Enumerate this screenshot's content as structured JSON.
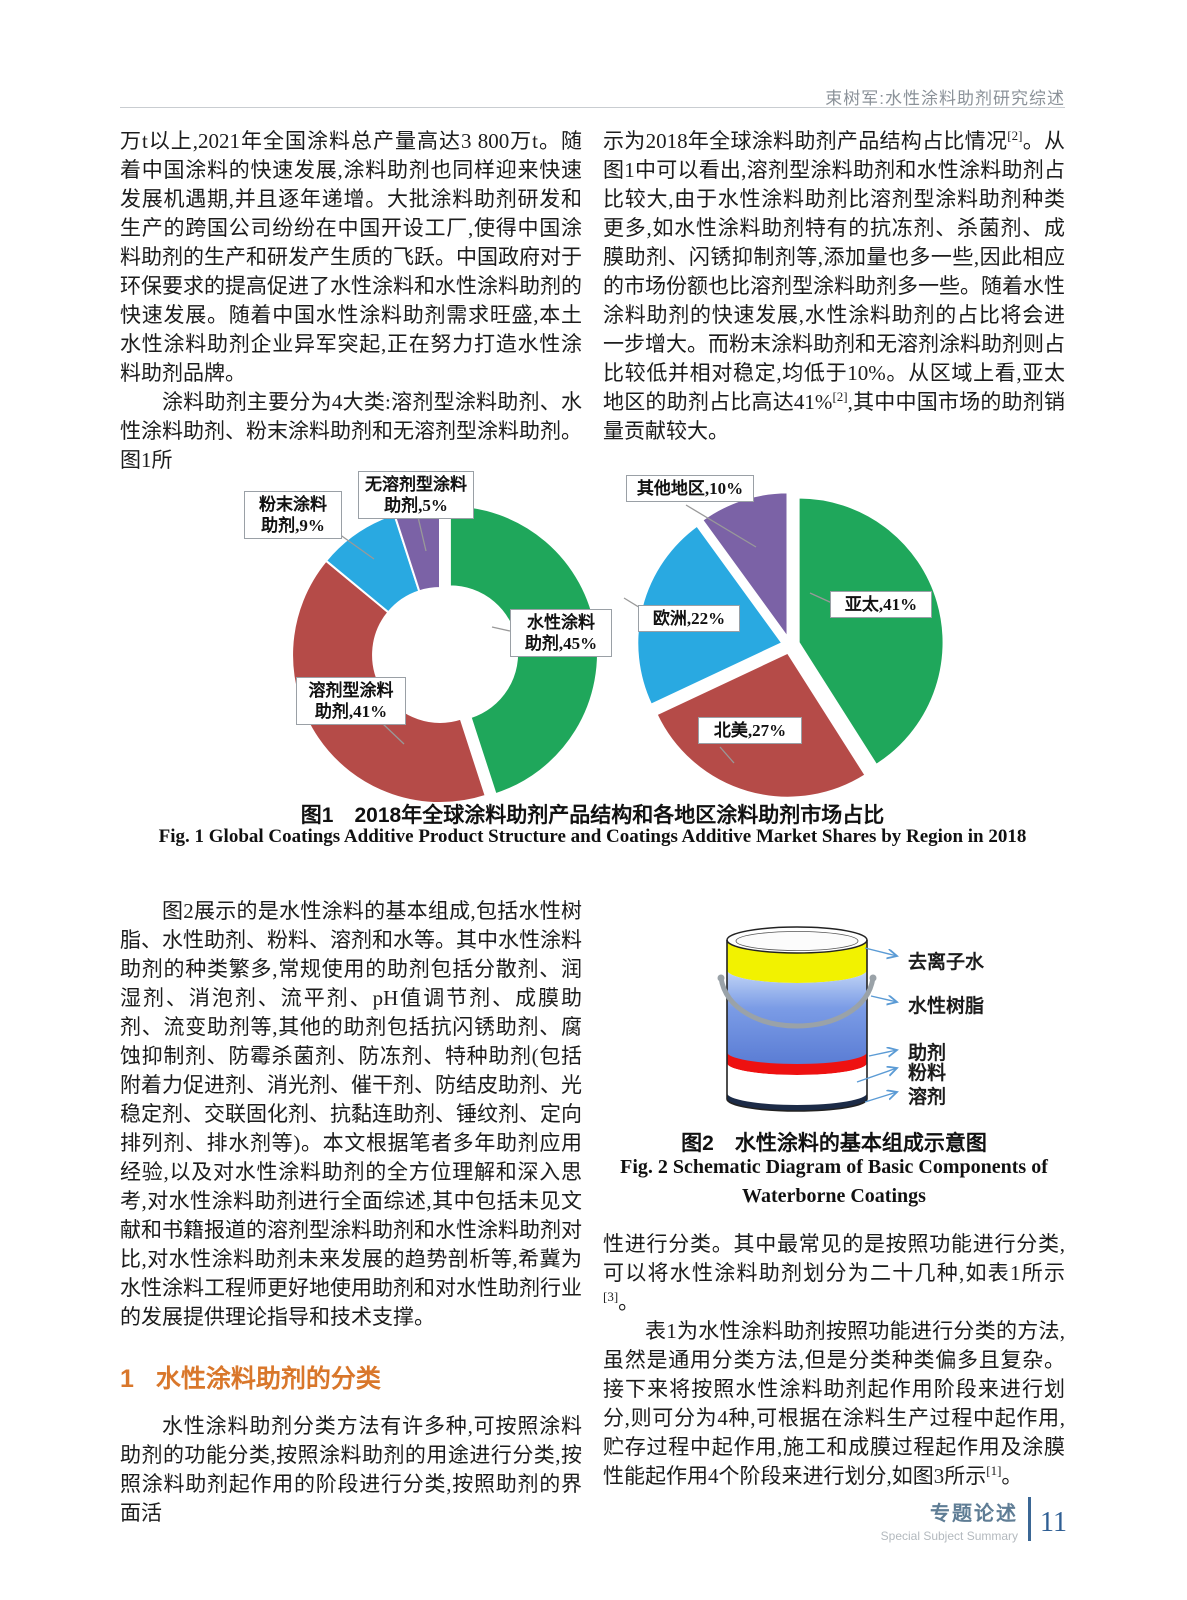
{
  "header": {
    "running_title": "束树军:水性涂料助剂研究综述"
  },
  "body": {
    "left_p1": [
      {
        "t": "万t以上,2021年全国涂料总产量高达3 800万t。随着中国涂料的快速发展,涂料助剂也同样迎来快速发展机遇期,并且逐年递增。大批涂料助剂研发和生产的跨国公司纷纷在中国开设工厂,使得中国涂料助剂的生产和研发产生质的飞跃。中国政府对于环保要求的提高促进了水性涂料和水性涂料助剂的快速发展。随着中国水性涂料助剂需求旺盛,本土水性涂料助剂企业异军突起,正在努力打造水性涂料助剂品牌。"
      }
    ],
    "left_p2": [
      {
        "t": "涂料助剂主要分为4大类:溶剂型涂料助剂、水性涂料助剂、粉末涂料助剂和无溶剂型涂料助剂。图1所"
      }
    ],
    "right_p1": [
      {
        "t": "示为2018年全球涂料助剂产品结构占比情况"
      },
      {
        "sup": "[2]"
      },
      {
        "t": "。从图1中可以看出,溶剂型涂料助剂和水性涂料助剂占比较大,由于水性涂料助剂比溶剂型涂料助剂种类更多,如水性涂料助剂特有的抗冻剂、杀菌剂、成膜助剂、闪锈抑制剂等,添加量也多一些,因此相应的市场份额也比溶剂型涂料助剂多一些。随着水性涂料助剂的快速发展,水性涂料助剂的占比将会进一步增大。而粉末涂料助剂和无溶剂涂料助剂则占比较低并相对稳定,均低于10%。从区域上看,亚太地区的助剂占比高达41%"
      },
      {
        "sup": "[2]"
      },
      {
        "t": ",其中中国市场的助剂销量贡献较大。"
      }
    ],
    "left_p3": [
      {
        "t": "图2展示的是水性涂料的基本组成,包括水性树脂、水性助剂、粉料、溶剂和水等。其中水性涂料助剂的种类繁多,常规使用的助剂包括分散剂、润湿剂、消泡剂、流平剂、pH值调节剂、成膜助剂、流变助剂等,其他的助剂包括抗闪锈助剂、腐蚀抑制剂、防霉杀菌剂、防冻剂、特种助剂(包括附着力促进剂、消光剂、催干剂、防结皮助剂、光稳定剂、交联固化剂、抗黏连助剂、锤纹剂、定向排列剂、排水剂等)。本文根据笔者多年助剂应用经验,以及对水性涂料助剂的全方位理解和深入思考,对水性涂料助剂进行全面综述,其中包括未见文献和书籍报道的溶剂型涂料助剂和水性涂料助剂对比,对水性涂料助剂未来发展的趋势剖析等,希冀为水性涂料工程师更好地使用助剂和对水性助剂行业的发展提供理论指导和技术支撑。"
      }
    ],
    "section1": {
      "number": "1",
      "title": "水性涂料助剂的分类"
    },
    "left_p4": [
      {
        "t": "水性涂料助剂分类方法有许多种,可按照涂料助剂的功能分类,按照涂料助剂的用途进行分类,按照涂料助剂起作用的阶段进行分类,按照助剂的界面活"
      }
    ],
    "right_p2": [
      {
        "t": "性进行分类。其中最常见的是按照功能进行分类,可以将水性涂料助剂划分为二十几种,如表1所示"
      },
      {
        "sup": "[3]"
      },
      {
        "t": "。"
      }
    ],
    "right_p3": [
      {
        "t": "表1为水性涂料助剂按照功能进行分类的方法,虽然是通用分类方法,但是分类种类偏多且复杂。接下来将按照水性涂料助剂起作用阶段来进行划分,则可分为4种,可根据在涂料生产过程中起作用,贮存过程中起作用,施工和成膜过程起作用及涂膜性能起作用4个阶段来进行划分,如图3所示"
      },
      {
        "sup": "[1]"
      },
      {
        "t": "。"
      }
    ]
  },
  "chart_data": [
    {
      "type": "donut",
      "title": "2018年全球涂料助剂产品结构占比",
      "slices": [
        {
          "label": "水性涂料助剂",
          "value": 45,
          "color": "#1FA75B"
        },
        {
          "label": "溶剂型涂料助剂",
          "value": 41,
          "color": "#B54B48"
        },
        {
          "label": "粉末涂料助剂",
          "value": 9,
          "color": "#29A9E1"
        },
        {
          "label": "无溶剂型涂料助剂",
          "value": 5,
          "color": "#7B62A6"
        }
      ]
    },
    {
      "type": "pie",
      "title": "2018年各地区涂料助剂市场占比",
      "slices": [
        {
          "label": "亚太",
          "value": 41,
          "color": "#1FA75B"
        },
        {
          "label": "北美",
          "value": 27,
          "color": "#B54B48"
        },
        {
          "label": "欧洲",
          "value": 22,
          "color": "#29A9E1"
        },
        {
          "label": "其他地区",
          "value": 10,
          "color": "#7B62A6"
        }
      ]
    }
  ],
  "figure1": {
    "caption_zh": "图1　2018年全球涂料助剂产品结构和各地区涂料助剂市场占比",
    "caption_en": "Fig. 1  Global Coatings Additive Product Structure and Coatings Additive Market Shares by Region in 2018",
    "labels": {
      "solventfree": "无溶剂型涂料\n助剂,5%",
      "powder": "粉末涂料\n助剂,9%",
      "waterborne": "水性涂料\n助剂,45%",
      "solvent": "溶剂型涂料\n助剂,41%",
      "other": "其他地区,10%",
      "asia": "亚太,41%",
      "europe": "欧洲,22%",
      "northamerica": "北美,27%"
    }
  },
  "figure2": {
    "caption_zh": "图2　水性涂料的基本组成示意图",
    "caption_en_line1": "Fig. 2  Schematic Diagram of Basic Components of",
    "caption_en_line2": "Waterborne Coatings",
    "layers": [
      {
        "label": "去离子水",
        "color": "#F2F200"
      },
      {
        "label": "水性树脂",
        "color": "#6E93E2"
      },
      {
        "label": "助剂",
        "color": "#EE1111"
      },
      {
        "label": "粉料",
        "color": "#FFFFFF"
      },
      {
        "label": "溶剂",
        "color": "#1C2B47"
      }
    ]
  },
  "footer": {
    "zh": "专题论述",
    "en": "Special Subject Summary",
    "page": "11"
  }
}
